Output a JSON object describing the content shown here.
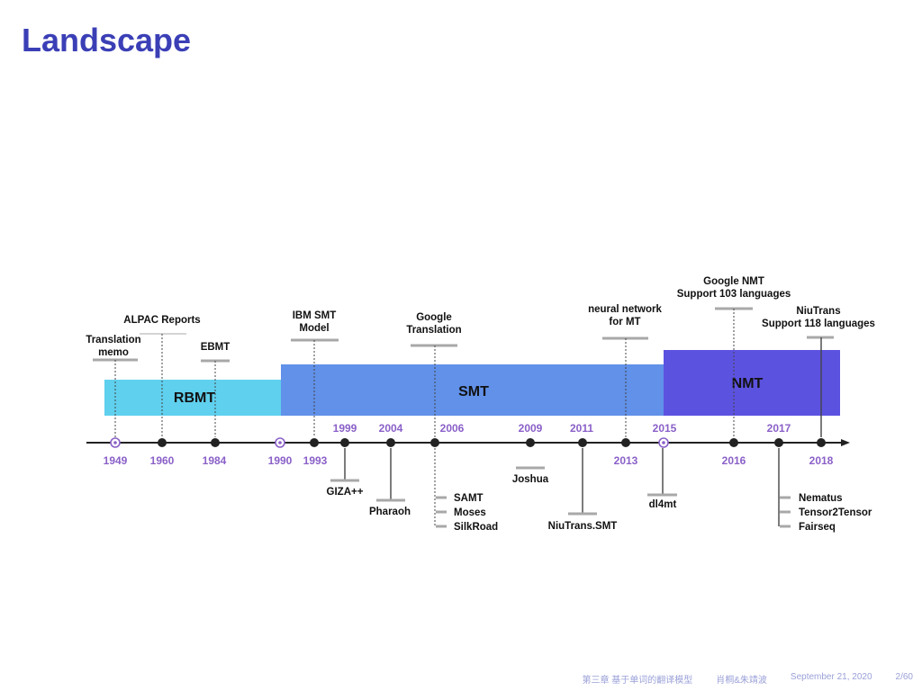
{
  "title": "Landscape",
  "colors": {
    "title": "#3b3fb6",
    "rbmt": "#5fd0ee",
    "smt": "#6191e8",
    "nmt": "#5c52e0",
    "axis": "#222222",
    "year_purple": "#8a60c8",
    "year_gray": "#333333",
    "tick_gray": "#a8a8a8"
  },
  "eras": [
    {
      "id": "rbmt",
      "label": "RBMT"
    },
    {
      "id": "smt",
      "label": "SMT"
    },
    {
      "id": "nmt",
      "label": "NMT"
    }
  ],
  "years_below": [
    "1949",
    "1960",
    "1984",
    "1990",
    "1993",
    "2013",
    "2016",
    "2018"
  ],
  "years_above": [
    "1999",
    "2004",
    "2006",
    "2009",
    "2011",
    "2015",
    "2017"
  ],
  "events_above": [
    "Translation memo",
    "ALPAC Reports",
    "EBMT",
    "IBM SMT Model",
    "Google Translation",
    "neural network for MT",
    "Google NMT Support 103 languages",
    "NiuTrans Support 118 languages"
  ],
  "events_below": [
    "GIZA++",
    "Pharaoh",
    "SAMT",
    "Moses",
    "SilkRoad",
    "Joshua",
    "NiuTrans.SMT",
    "dl4mt",
    "Nematus",
    "Tensor2Tensor",
    "Fairseq"
  ],
  "footer": {
    "chapter": "第三章 基于单词的翻译模型",
    "authors": "肖桐&朱靖波",
    "date": "September 21, 2020",
    "page": "2/60"
  }
}
